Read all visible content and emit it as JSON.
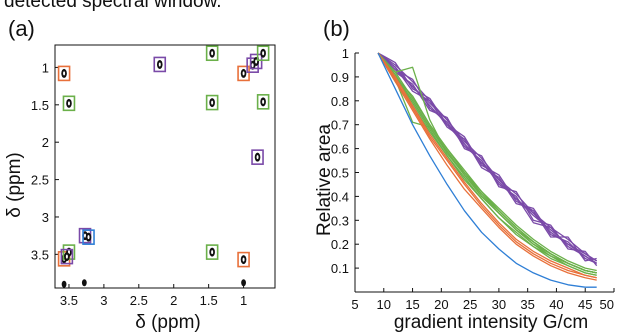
{
  "header_fragment": "detected spectral window.",
  "colors": {
    "orange": "#e8703a",
    "green": "#6bb04a",
    "purple": "#7a4aa8",
    "blue": "#2f7fd6",
    "axis": "#111111"
  },
  "chart_data": [
    {
      "panel": "(a)",
      "type": "scatter",
      "xlabel": "δ (ppm)",
      "ylabel": "δ (ppm)",
      "xlim": [
        3.7,
        0.55
      ],
      "ylim": [
        3.95,
        0.7
      ],
      "x_reversed": true,
      "y_reversed": true,
      "xticks": [
        3.5,
        3,
        2.5,
        2,
        1.5,
        1
      ],
      "xtick_labels": [
        "3.5",
        "3",
        "2.5",
        "2",
        "1.5",
        "1"
      ],
      "yticks": [
        1,
        1.5,
        2,
        2.5,
        3,
        3.5
      ],
      "ytick_labels": [
        "1",
        "1.5",
        "2",
        "2.5",
        "3",
        "3.5"
      ],
      "peaks": [
        {
          "x": 3.57,
          "y": 1.08,
          "color": "orange"
        },
        {
          "x": 3.5,
          "y": 1.48,
          "color": "green"
        },
        {
          "x": 3.57,
          "y": 3.56,
          "color": "orange"
        },
        {
          "x": 3.5,
          "y": 3.47,
          "color": "green"
        },
        {
          "x": 3.53,
          "y": 3.53,
          "color": "purple"
        },
        {
          "x": 3.27,
          "y": 3.25,
          "color": "purple"
        },
        {
          "x": 3.22,
          "y": 3.27,
          "color": "blue"
        },
        {
          "x": 2.2,
          "y": 0.96,
          "color": "purple"
        },
        {
          "x": 1.45,
          "y": 0.81,
          "color": "green"
        },
        {
          "x": 1.45,
          "y": 1.47,
          "color": "green"
        },
        {
          "x": 1.45,
          "y": 3.47,
          "color": "green"
        },
        {
          "x": 1.0,
          "y": 1.08,
          "color": "orange"
        },
        {
          "x": 1.0,
          "y": 3.57,
          "color": "orange"
        },
        {
          "x": 0.87,
          "y": 0.97,
          "color": "purple"
        },
        {
          "x": 0.82,
          "y": 0.92,
          "color": "purple"
        },
        {
          "x": 0.72,
          "y": 0.81,
          "color": "green"
        },
        {
          "x": 0.72,
          "y": 1.46,
          "color": "green"
        },
        {
          "x": 0.8,
          "y": 2.2,
          "color": "purple"
        }
      ],
      "unboxed_peaks": [
        {
          "x": 3.57,
          "y": 3.9
        },
        {
          "x": 3.28,
          "y": 3.88
        },
        {
          "x": 1.0,
          "y": 3.88
        }
      ]
    },
    {
      "panel": "(b)",
      "type": "line",
      "xlabel": "gradient intensity G/cm",
      "ylabel": "Relative area",
      "xlim": [
        5,
        50
      ],
      "ylim": [
        0,
        1
      ],
      "xticks": [
        5,
        10,
        15,
        20,
        25,
        30,
        35,
        40,
        45,
        50
      ],
      "xtick_labels": [
        "5",
        "10",
        "15",
        "20",
        "25",
        "30",
        "35",
        "40",
        "45",
        "50"
      ],
      "yticks": [
        0.1,
        0.2,
        0.3,
        0.4,
        0.5,
        0.6,
        0.7,
        0.8,
        0.9,
        1
      ],
      "ytick_labels": [
        "0.1",
        "0.2",
        "0.3",
        "0.4",
        "0.5",
        "0.6",
        "0.7",
        "0.8",
        "0.9",
        "1"
      ],
      "x": [
        9,
        12,
        15,
        18,
        21,
        24,
        27,
        30,
        33,
        36,
        39,
        42,
        45,
        47
      ],
      "series": [
        {
          "color": "purple",
          "values": [
            1,
            0.93,
            0.86,
            0.78,
            0.7,
            0.62,
            0.54,
            0.46,
            0.39,
            0.32,
            0.26,
            0.2,
            0.15,
            0.12
          ]
        },
        {
          "color": "purple",
          "values": [
            1,
            0.95,
            0.88,
            0.8,
            0.72,
            0.63,
            0.56,
            0.47,
            0.41,
            0.33,
            0.27,
            0.22,
            0.16,
            0.13
          ]
        },
        {
          "color": "purple",
          "values": [
            1,
            0.94,
            0.84,
            0.8,
            0.69,
            0.64,
            0.52,
            0.48,
            0.37,
            0.35,
            0.24,
            0.21,
            0.14,
            0.12
          ]
        },
        {
          "color": "purple",
          "values": [
            1,
            0.92,
            0.87,
            0.76,
            0.73,
            0.6,
            0.57,
            0.44,
            0.42,
            0.3,
            0.28,
            0.18,
            0.17,
            0.11
          ]
        },
        {
          "color": "purple",
          "values": [
            1,
            0.96,
            0.85,
            0.81,
            0.7,
            0.65,
            0.53,
            0.49,
            0.38,
            0.34,
            0.23,
            0.23,
            0.13,
            0.14
          ]
        },
        {
          "color": "purple",
          "values": [
            1,
            0.93,
            0.89,
            0.77,
            0.71,
            0.61,
            0.55,
            0.45,
            0.4,
            0.29,
            0.27,
            0.19,
            0.15,
            0.12
          ]
        },
        {
          "color": "purple",
          "values": [
            1,
            0.94,
            0.86,
            0.79,
            0.72,
            0.62,
            0.54,
            0.47,
            0.39,
            0.33,
            0.25,
            0.2,
            0.16,
            0.13
          ]
        },
        {
          "color": "green",
          "values": [
            1,
            0.9,
            0.82,
            0.7,
            0.6,
            0.5,
            0.42,
            0.34,
            0.27,
            0.21,
            0.16,
            0.12,
            0.09,
            0.08
          ]
        },
        {
          "color": "green",
          "values": [
            1,
            0.91,
            0.8,
            0.69,
            0.59,
            0.49,
            0.4,
            0.33,
            0.26,
            0.2,
            0.15,
            0.12,
            0.09,
            0.08
          ]
        },
        {
          "color": "green",
          "values": [
            1,
            0.9,
            0.79,
            0.68,
            0.57,
            0.48,
            0.39,
            0.31,
            0.25,
            0.19,
            0.15,
            0.11,
            0.08,
            0.07
          ]
        },
        {
          "color": "green",
          "values": [
            1,
            0.92,
            0.81,
            0.7,
            0.6,
            0.51,
            0.42,
            0.35,
            0.28,
            0.22,
            0.17,
            0.13,
            0.1,
            0.09
          ]
        },
        {
          "color": "green",
          "values": [
            1,
            0.88,
            0.78,
            0.67,
            0.57,
            0.47,
            0.39,
            0.31,
            0.24,
            0.19,
            0.14,
            0.11,
            0.08,
            0.07
          ]
        },
        {
          "color": "green",
          "values": [
            1,
            0.89,
            0.71,
            0.69,
            0.58,
            0.5,
            0.41,
            0.33,
            0.26,
            0.2,
            0.16,
            0.12,
            0.09,
            0.08
          ]
        },
        {
          "color": "green",
          "values": [
            1,
            0.92,
            0.94,
            0.72,
            0.58,
            0.49,
            0.4,
            0.33,
            0.26,
            0.21,
            0.16,
            0.12,
            0.09,
            0.08
          ]
        },
        {
          "color": "green",
          "values": [
            1,
            0.9,
            0.8,
            0.69,
            0.59,
            0.49,
            0.41,
            0.34,
            0.27,
            0.21,
            0.16,
            0.12,
            0.09,
            0.08
          ]
        },
        {
          "color": "orange",
          "values": [
            1,
            0.89,
            0.77,
            0.65,
            0.55,
            0.45,
            0.36,
            0.28,
            0.21,
            0.16,
            0.12,
            0.09,
            0.07,
            0.06
          ]
        },
        {
          "color": "orange",
          "values": [
            1,
            0.88,
            0.76,
            0.64,
            0.53,
            0.43,
            0.35,
            0.27,
            0.2,
            0.15,
            0.11,
            0.08,
            0.06,
            0.05
          ]
        },
        {
          "color": "orange",
          "values": [
            1,
            0.9,
            0.78,
            0.66,
            0.56,
            0.46,
            0.37,
            0.29,
            0.22,
            0.17,
            0.13,
            0.1,
            0.07,
            0.06
          ]
        },
        {
          "color": "blue",
          "values": [
            1,
            0.85,
            0.7,
            0.57,
            0.45,
            0.34,
            0.25,
            0.18,
            0.12,
            0.08,
            0.05,
            0.03,
            0.02,
            0.02
          ]
        }
      ]
    }
  ]
}
